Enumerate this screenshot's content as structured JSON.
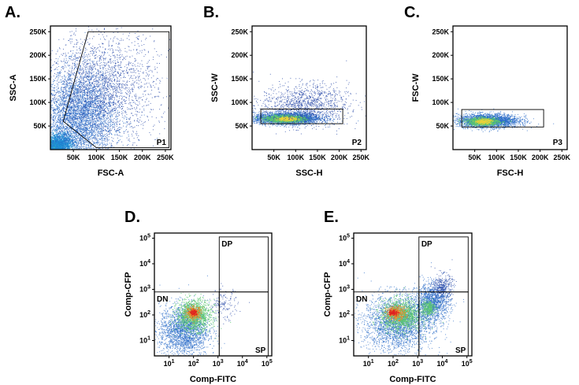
{
  "chart_data": [
    {
      "panel": "A.",
      "type": "scatter",
      "xlabel": "FSC-A",
      "ylabel": "SSC-A",
      "xlim": [
        0,
        262144
      ],
      "ylim": [
        0,
        262144
      ],
      "x_ticks": [
        {
          "v": 50000,
          "label": "50K"
        },
        {
          "v": 100000,
          "label": "100K"
        },
        {
          "v": 150000,
          "label": "150K"
        },
        {
          "v": 200000,
          "label": "200K"
        },
        {
          "v": 250000,
          "label": "250K"
        }
      ],
      "y_ticks": [
        {
          "v": 50000,
          "label": "50K"
        },
        {
          "v": 100000,
          "label": "100K"
        },
        {
          "v": 150000,
          "label": "150K"
        },
        {
          "v": 200000,
          "label": "200K"
        },
        {
          "v": 250000,
          "label": "250K"
        }
      ],
      "gates": [
        {
          "name": "P1",
          "shape": "polygon",
          "points": [
            [
              28000,
              60000
            ],
            [
              82000,
              250000
            ],
            [
              258000,
              250000
            ],
            [
              258000,
              4000
            ],
            [
              100000,
              4000
            ]
          ]
        }
      ],
      "clusters": [
        {
          "cx": 5000,
          "cy": 3000,
          "sx": 9000,
          "sy": 7000,
          "n": 2600,
          "color": "#3fd0b0",
          "dense": true
        },
        {
          "cx": 20000,
          "cy": 12000,
          "sx": 15000,
          "sy": 12000,
          "n": 1800,
          "color": "#1e8fd6"
        },
        {
          "cx": 60000,
          "cy": 70000,
          "sx": 40000,
          "sy": 50000,
          "n": 4200,
          "color": "#2b6cc8"
        },
        {
          "cx": 110000,
          "cy": 130000,
          "sx": 60000,
          "sy": 60000,
          "n": 2500,
          "color": "#2a4aa8"
        }
      ]
    },
    {
      "panel": "B.",
      "type": "scatter",
      "xlabel": "SSC-H",
      "ylabel": "SSC-W",
      "xlim": [
        0,
        262144
      ],
      "ylim": [
        0,
        262144
      ],
      "x_ticks": [
        {
          "v": 50000,
          "label": "50K"
        },
        {
          "v": 100000,
          "label": "100K"
        },
        {
          "v": 150000,
          "label": "150K"
        },
        {
          "v": 200000,
          "label": "200K"
        },
        {
          "v": 250000,
          "label": "250K"
        }
      ],
      "y_ticks": [
        {
          "v": 50000,
          "label": "50K"
        },
        {
          "v": 100000,
          "label": "100K"
        },
        {
          "v": 150000,
          "label": "150K"
        },
        {
          "v": 200000,
          "label": "200K"
        },
        {
          "v": 250000,
          "label": "250K"
        }
      ],
      "gates": [
        {
          "name": "P2",
          "shape": "rect",
          "x0": 20000,
          "x1": 208000,
          "y0": 55000,
          "y1": 86000
        }
      ],
      "clusters": [
        {
          "cx": 80000,
          "cy": 67000,
          "sx": 38000,
          "sy": 6000,
          "n": 3200,
          "color": "#2b6cc8"
        },
        {
          "cx": 75000,
          "cy": 66000,
          "sx": 22000,
          "sy": 3500,
          "n": 1400,
          "color": "#5cc870",
          "dense": true
        },
        {
          "cx": 80000,
          "cy": 66000,
          "sx": 10000,
          "sy": 2000,
          "n": 400,
          "color": "#e8d23a",
          "dense": true
        },
        {
          "cx": 120000,
          "cy": 95000,
          "sx": 50000,
          "sy": 22000,
          "n": 1300,
          "color": "#2a4aa8"
        }
      ]
    },
    {
      "panel": "C.",
      "type": "scatter",
      "xlabel": "FSC-H",
      "ylabel": "FSC-W",
      "xlim": [
        0,
        262144
      ],
      "ylim": [
        0,
        262144
      ],
      "x_ticks": [
        {
          "v": 50000,
          "label": "50K"
        },
        {
          "v": 100000,
          "label": "100K"
        },
        {
          "v": 150000,
          "label": "150K"
        },
        {
          "v": 200000,
          "label": "200K"
        },
        {
          "v": 250000,
          "label": "250K"
        }
      ],
      "y_ticks": [
        {
          "v": 50000,
          "label": "50K"
        },
        {
          "v": 100000,
          "label": "100K"
        },
        {
          "v": 150000,
          "label": "150K"
        },
        {
          "v": 200000,
          "label": "200K"
        },
        {
          "v": 250000,
          "label": "250K"
        }
      ],
      "gates": [
        {
          "name": "P3",
          "shape": "rect",
          "x0": 20000,
          "x1": 208000,
          "y0": 48000,
          "y1": 85000
        }
      ],
      "clusters": [
        {
          "cx": 80000,
          "cy": 62000,
          "sx": 35000,
          "sy": 7000,
          "n": 2800,
          "color": "#2b6cc8"
        },
        {
          "cx": 68000,
          "cy": 60000,
          "sx": 18000,
          "sy": 4000,
          "n": 1100,
          "color": "#5cc870",
          "dense": true
        },
        {
          "cx": 70000,
          "cy": 60000,
          "sx": 8000,
          "sy": 2500,
          "n": 300,
          "color": "#e8d23a",
          "dense": true
        }
      ]
    },
    {
      "panel": "D.",
      "type": "scatter",
      "scale": "log",
      "xlabel": "Comp-FITC",
      "ylabel": "Comp-CFP",
      "xlim_log10": [
        0.4,
        5.2
      ],
      "ylim_log10": [
        0.4,
        5.2
      ],
      "x_ticks": [
        {
          "e": 1,
          "base": "10",
          "exp": "1"
        },
        {
          "e": 2,
          "base": "10",
          "exp": "2"
        },
        {
          "e": 3,
          "base": "10",
          "exp": "3"
        },
        {
          "e": 4,
          "base": "10",
          "exp": "4"
        },
        {
          "e": 5,
          "base": "10",
          "exp": "5"
        }
      ],
      "y_ticks": [
        {
          "e": 1,
          "base": "10",
          "exp": "1"
        },
        {
          "e": 2,
          "base": "10",
          "exp": "2"
        },
        {
          "e": 3,
          "base": "10",
          "exp": "3"
        },
        {
          "e": 4,
          "base": "10",
          "exp": "4"
        },
        {
          "e": 5,
          "base": "10",
          "exp": "5"
        }
      ],
      "gates": [
        {
          "name": "DN",
          "shape": "rect",
          "lx0": 0.4,
          "lx1": 3.05,
          "ly0": 0.4,
          "ly1": 2.9,
          "label_pos": "top-left"
        },
        {
          "name": "DP",
          "shape": "rect",
          "lx0": 3.05,
          "lx1": 5.05,
          "ly0": 2.9,
          "ly1": 5.05,
          "label_pos": "top-left"
        },
        {
          "name": "SP",
          "shape": "rect",
          "lx0": 3.05,
          "lx1": 5.05,
          "ly0": 0.4,
          "ly1": 2.9,
          "label_pos": "bottom-right"
        }
      ],
      "clusters": [
        {
          "cx": 1.6,
          "cy": 1.4,
          "sx": 0.5,
          "sy": 0.5,
          "n": 2200,
          "color": "#2b6cc8"
        },
        {
          "cx": 2.0,
          "cy": 2.0,
          "sx": 0.35,
          "sy": 0.3,
          "n": 1300,
          "color": "#5cc870",
          "dense": true
        },
        {
          "cx": 2.0,
          "cy": 2.1,
          "sx": 0.15,
          "sy": 0.12,
          "n": 350,
          "color": "#f08a24",
          "dense": true
        },
        {
          "cx": 2.0,
          "cy": 2.1,
          "sx": 0.07,
          "sy": 0.06,
          "n": 120,
          "color": "#e02020",
          "dense": true
        },
        {
          "cx": 3.2,
          "cy": 2.4,
          "sx": 0.3,
          "sy": 0.3,
          "n": 150,
          "color": "#2a4aa8"
        }
      ]
    },
    {
      "panel": "E.",
      "type": "scatter",
      "scale": "log",
      "xlabel": "Comp-FITC",
      "ylabel": "Comp-CFP",
      "xlim_log10": [
        0.4,
        5.2
      ],
      "ylim_log10": [
        0.4,
        5.2
      ],
      "x_ticks": [
        {
          "e": 1,
          "base": "10",
          "exp": "1"
        },
        {
          "e": 2,
          "base": "10",
          "exp": "2"
        },
        {
          "e": 3,
          "base": "10",
          "exp": "3"
        },
        {
          "e": 4,
          "base": "10",
          "exp": "4"
        },
        {
          "e": 5,
          "base": "10",
          "exp": "5"
        }
      ],
      "y_ticks": [
        {
          "e": 1,
          "base": "10",
          "exp": "1"
        },
        {
          "e": 2,
          "base": "10",
          "exp": "2"
        },
        {
          "e": 3,
          "base": "10",
          "exp": "3"
        },
        {
          "e": 4,
          "base": "10",
          "exp": "4"
        },
        {
          "e": 5,
          "base": "10",
          "exp": "5"
        }
      ],
      "gates": [
        {
          "name": "DN",
          "shape": "rect",
          "lx0": 0.4,
          "lx1": 3.05,
          "ly0": 0.4,
          "ly1": 2.9,
          "label_pos": "top-left"
        },
        {
          "name": "DP",
          "shape": "rect",
          "lx0": 3.05,
          "lx1": 5.05,
          "ly0": 2.9,
          "ly1": 5.05,
          "label_pos": "top-left"
        },
        {
          "name": "SP",
          "shape": "rect",
          "lx0": 3.05,
          "lx1": 5.05,
          "ly0": 0.4,
          "ly1": 2.9,
          "label_pos": "bottom-right"
        }
      ],
      "clusters": [
        {
          "cx": 2.2,
          "cy": 1.7,
          "sx": 0.7,
          "sy": 0.55,
          "n": 2600,
          "color": "#2b6cc8"
        },
        {
          "cx": 2.3,
          "cy": 2.0,
          "sx": 0.4,
          "sy": 0.3,
          "n": 1300,
          "color": "#5cc870",
          "dense": true
        },
        {
          "cx": 2.1,
          "cy": 2.1,
          "sx": 0.2,
          "sy": 0.13,
          "n": 380,
          "color": "#f08a24",
          "dense": true
        },
        {
          "cx": 2.0,
          "cy": 2.1,
          "sx": 0.1,
          "sy": 0.06,
          "n": 130,
          "color": "#e02020",
          "dense": true
        },
        {
          "cx": 3.6,
          "cy": 2.5,
          "sx": 0.35,
          "sy": 0.35,
          "n": 1300,
          "color": "#2b6cc8"
        },
        {
          "cx": 3.4,
          "cy": 2.3,
          "sx": 0.15,
          "sy": 0.15,
          "n": 300,
          "color": "#5cc870",
          "dense": true
        },
        {
          "cx": 4.0,
          "cy": 3.1,
          "sx": 0.2,
          "sy": 0.25,
          "n": 350,
          "color": "#2a4aa8"
        }
      ]
    }
  ]
}
